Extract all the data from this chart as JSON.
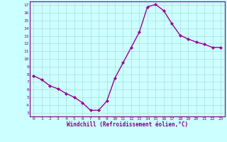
{
  "x": [
    0,
    1,
    2,
    3,
    4,
    5,
    6,
    7,
    8,
    9,
    10,
    11,
    12,
    13,
    14,
    15,
    16,
    17,
    18,
    19,
    20,
    21,
    22,
    23
  ],
  "y": [
    7.8,
    7.3,
    6.5,
    6.1,
    5.5,
    5.0,
    4.3,
    3.3,
    3.3,
    4.5,
    7.5,
    9.5,
    11.5,
    13.5,
    16.8,
    17.1,
    16.3,
    14.6,
    13.1,
    12.6,
    12.2,
    11.9,
    11.5,
    11.5
  ],
  "line_color": "#990099",
  "marker": "D",
  "marker_size": 2.0,
  "bg_color": "#ccffff",
  "grid_color": "#aadddd",
  "xlabel": "Windchill (Refroidissement éolien,°C)",
  "ylabel": "",
  "xlim": [
    -0.5,
    23.5
  ],
  "ylim": [
    2.5,
    17.5
  ],
  "yticks": [
    3,
    4,
    5,
    6,
    7,
    8,
    9,
    10,
    11,
    12,
    13,
    14,
    15,
    16,
    17
  ],
  "xticks": [
    0,
    1,
    2,
    3,
    4,
    5,
    6,
    7,
    8,
    9,
    10,
    11,
    12,
    13,
    14,
    15,
    16,
    17,
    18,
    19,
    20,
    21,
    22,
    23
  ],
  "border_color": "#800080",
  "tick_label_color": "#800080",
  "xlabel_fontsize": 5.5,
  "tick_fontsize": 4.5,
  "linewidth": 1.0
}
